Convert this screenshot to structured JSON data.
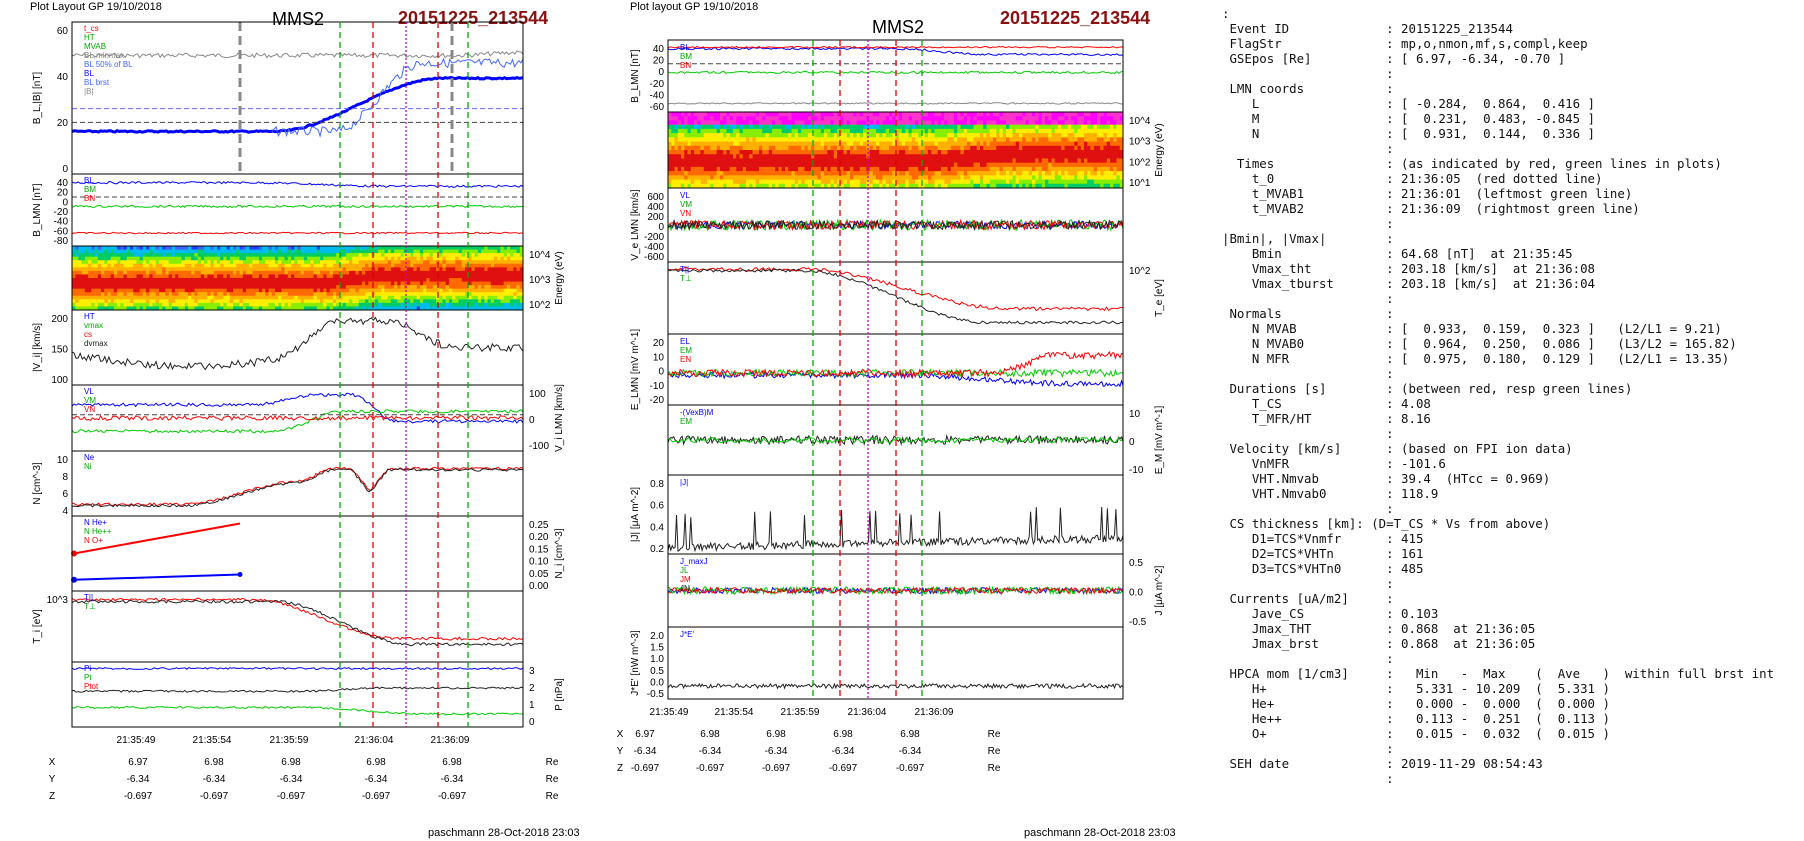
{
  "header": {
    "left_plot_label": "Plot Layout GP 19/10/2018",
    "right_plot_label": "Plot layout GP 19/10/2018",
    "spacecraft": "MMS2",
    "event": "20151225_213544"
  },
  "footer": {
    "left": "paschmann 28-Oct-2018 23:03",
    "right": "paschmann 28-Oct-2018 23:03"
  },
  "time_ticks": [
    "21:35:49",
    "21:35:54",
    "21:35:59",
    "21:36:04",
    "21:36:09"
  ],
  "position_table": {
    "rows": [
      {
        "label": "X",
        "values": [
          "6.97",
          "6.98",
          "6.98",
          "6.98",
          "6.98"
        ],
        "unit": "Re"
      },
      {
        "label": "Y",
        "values": [
          "-6.34",
          "-6.34",
          "-6.34",
          "-6.34",
          "-6.34"
        ],
        "unit": "Re"
      },
      {
        "label": "Z",
        "values": [
          "-0.697",
          "-0.697",
          "-0.697",
          "-0.697",
          "-0.697"
        ],
        "unit": "Re"
      }
    ]
  },
  "colors": {
    "title_red": "#8b1010",
    "bl_blue": "#0000ff",
    "green_line": "#00aa00",
    "red_line": "#e00000",
    "magenta_line": "#cc00cc"
  },
  "chart_data": [
    {
      "type": "line",
      "panel": "left-stack",
      "x": [
        "21:35:49",
        "21:35:54",
        "21:35:59",
        "21:36:04",
        "21:36:09"
      ],
      "panels": [
        {
          "ylabel": "B_L,|B| [nT]",
          "yticks": [
            "60",
            "40",
            "20",
            "0"
          ],
          "legend": [
            "t_cs",
            "HT",
            "MVAB",
            "BL,minmax",
            "BL 50% of BL",
            "BL",
            "BL brst",
            "|B|"
          ]
        },
        {
          "ylabel": "B_LMN [nT]",
          "yticks": [
            "40",
            "20",
            "0",
            "-20",
            "-40",
            "-60",
            "-80"
          ],
          "legend": [
            "BL",
            "BM",
            "BN"
          ]
        },
        {
          "ylabel": "Energy (eV)",
          "yticks": [
            "10^4",
            "10^3",
            "10^2"
          ],
          "type": "heatmap"
        },
        {
          "ylabel": "|V_i| [km/s]",
          "yticks": [
            "200",
            "150",
            "100"
          ],
          "legend": [
            "HT",
            "vmax",
            "cs",
            "dvmax"
          ]
        },
        {
          "ylabel": "V_i LMN [km/s]",
          "yticks": [
            "100",
            "0",
            "-100"
          ],
          "legend": [
            "VL",
            "VM",
            "VN"
          ]
        },
        {
          "ylabel": "N [cm^-3]",
          "yticks": [
            "10",
            "8",
            "6",
            "4"
          ],
          "legend": [
            "Ne",
            "Ni"
          ]
        },
        {
          "ylabel": "N_i [cm^-3]",
          "yticks": [
            "0.25",
            "0.20",
            "0.15",
            "0.10",
            "0.05",
            "0.00"
          ],
          "legend": [
            "N He+",
            "N He++",
            "N O+"
          ]
        },
        {
          "ylabel": "T_i [eV]",
          "yticks": [
            "10^3"
          ],
          "legend": [
            "T||",
            "T⊥"
          ]
        },
        {
          "ylabel": "P [nPa]",
          "yticks": [
            "3",
            "2",
            "1",
            "0"
          ],
          "legend": [
            "Pi",
            "Pt",
            "Ptot"
          ]
        }
      ]
    },
    {
      "type": "line",
      "panel": "right-stack",
      "x": [
        "21:35:49",
        "21:35:54",
        "21:35:59",
        "21:36:04",
        "21:36:09"
      ],
      "panels": [
        {
          "ylabel": "B_LMN [nT]",
          "yticks": [
            "40",
            "20",
            "0",
            "-20",
            "-40",
            "-60"
          ],
          "legend": [
            "BL",
            "BM",
            "BN"
          ]
        },
        {
          "ylabel": "Energy (eV)",
          "yticks": [
            "10^4",
            "10^3",
            "10^2",
            "10^1"
          ],
          "type": "heatmap"
        },
        {
          "ylabel": "V_e LMN [km/s]",
          "yticks": [
            "600",
            "400",
            "200",
            "0",
            "-200",
            "-400",
            "-600"
          ],
          "legend": [
            "VL",
            "VM",
            "VN"
          ]
        },
        {
          "ylabel": "T_e [eV]",
          "yticks": [
            "10^2"
          ],
          "legend": [
            "T||",
            "T⊥"
          ]
        },
        {
          "ylabel": "E_LMN [mV m^-1]",
          "yticks": [
            "20",
            "10",
            "0",
            "-10",
            "-20"
          ],
          "legend": [
            "EL",
            "EM",
            "EN"
          ]
        },
        {
          "ylabel": "E_M [mV m^-1]",
          "yticks": [
            "10",
            "0",
            "-10"
          ],
          "legend": [
            "-(VexB)M",
            "EM"
          ]
        },
        {
          "ylabel": "|J| [μA m^-2]",
          "yticks": [
            "0.8",
            "0.6",
            "0.4",
            "0.2"
          ],
          "legend": [
            "|J|"
          ]
        },
        {
          "ylabel": "J [μA m^-2]",
          "yticks": [
            "0.5",
            "0.0",
            "-0.5"
          ],
          "legend": [
            "J_maxJ",
            "JL",
            "JM",
            "JN"
          ]
        },
        {
          "ylabel": "J*E' [nW m^-3]",
          "yticks": [
            "2.0",
            "1.5",
            "1.0",
            "0.5",
            "0.0",
            "-0.5"
          ],
          "legend": [
            "J*E'"
          ]
        }
      ]
    }
  ],
  "info_lines": [
    ":",
    " Event ID             : 20151225_213544",
    " FlagStr              : mp,o,nmon,mf,s,compl,keep",
    " GSEpos [Re]          : [ 6.97, -6.34, -0.70 ]",
    "                      :",
    " LMN coords           :",
    "    L                 : [ -0.284,  0.864,  0.416 ]",
    "    M                 : [  0.231,  0.483, -0.845 ]",
    "    N                 : [  0.931,  0.144,  0.336 ]",
    "                      :",
    "  Times               : (as indicated by red, green lines in plots)",
    "    t_0               : 21:36:05  (red dotted line)",
    "    t_MVAB1           : 21:36:01  (leftmost green line)",
    "    t_MVAB2           : 21:36:09  (rightmost green line)",
    "                      :",
    "|Bmin|, |Vmax|        :",
    "    Bmin              : 64.68 [nT]  at 21:35:45",
    "    Vmax_tht          : 203.18 [km/s]  at 21:36:08",
    "    Vmax_tburst       : 203.18 [km/s]  at 21:36:04",
    "                      :",
    " Normals              :",
    "    N MVAB            : [  0.933,  0.159,  0.323 ]   (L2/L1 = 9.21)",
    "    N MVAB0           : [  0.964,  0.250,  0.086 ]   (L3/L2 = 165.82)",
    "    N MFR             : [  0.975,  0.180,  0.129 ]   (L2/L1 = 13.35)",
    "                      :",
    " Durations [s]        : (between red, resp green lines)",
    "    T_CS              : 4.08",
    "    T_MFR/HT          : 8.16",
    "                      :",
    " Velocity [km/s]      : (based on FPI ion data)",
    "    VnMFR             : -101.6",
    "    VHT.Nmvab         : 39.4  (HTcc = 0.969)",
    "    VHT.Nmvab0        : 118.9",
    "                      :",
    " CS thickness [km]: (D=T_CS * Vs from above)",
    "    D1=TCS*Vnmfr      : 415",
    "    D2=TCS*VHTn       : 161",
    "    D3=TCS*VHTn0      : 485",
    "                      :",
    " Currents [uA/m2]     :",
    "    Jave_CS           : 0.103",
    "    Jmax_THT          : 0.868  at 21:36:05",
    "    Jmax_brst         : 0.868  at 21:36:05",
    "                      :",
    " HPCA mom [1/cm3]     :   Min   -  Max    (  Ave   )  within full brst int",
    "    H+                :   5.331 - 10.209  (  5.331 )",
    "    He+               :   0.000 -  0.000  (  0.000 )",
    "    He++              :   0.113 -  0.251  (  0.113 )",
    "    O+                :   0.015 -  0.032  (  0.015 )",
    "                      :",
    " SEH date             : 2019-11-29 08:54:43",
    "                      :"
  ]
}
